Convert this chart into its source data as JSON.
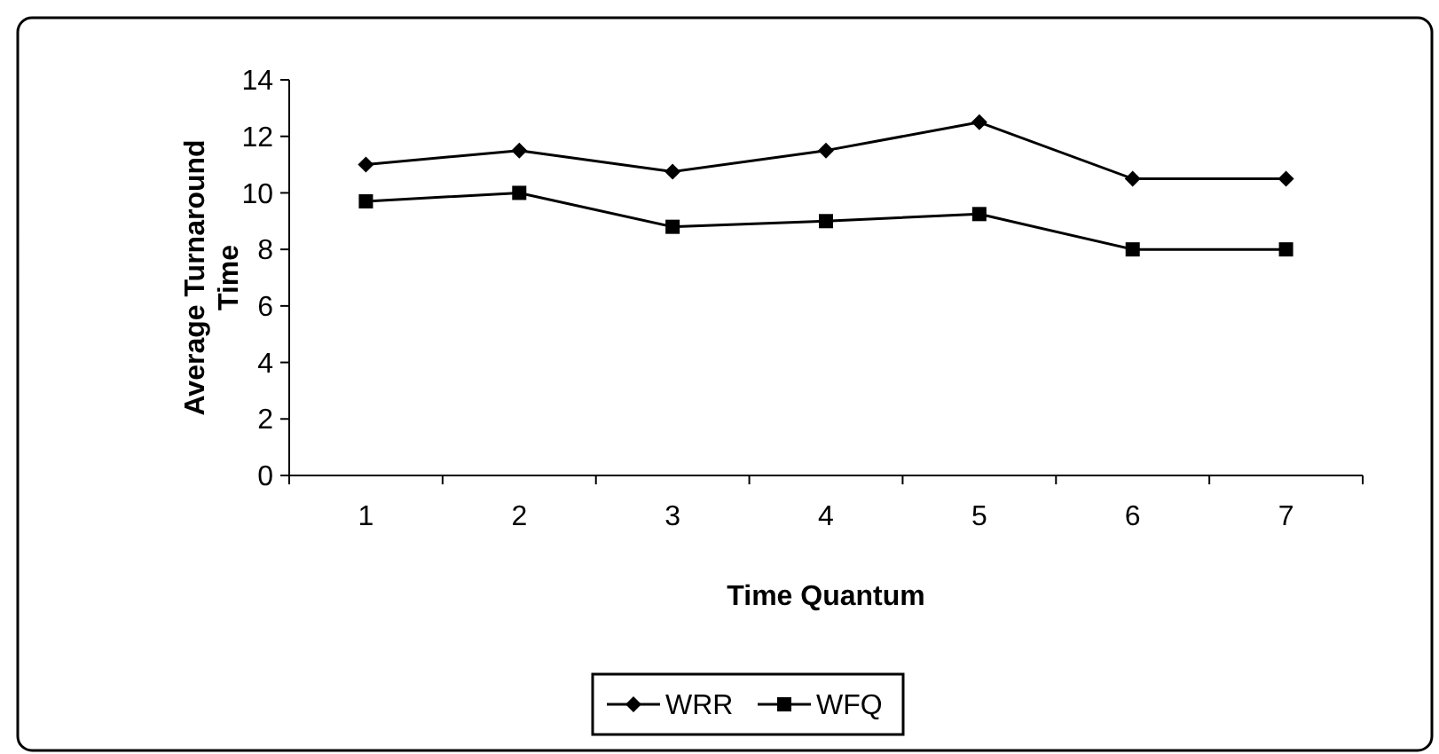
{
  "chart_data": {
    "type": "line",
    "xlabel": "Time Quantum",
    "ylabel": "Average Turnaround Time",
    "categories": [
      "1",
      "2",
      "3",
      "4",
      "5",
      "6",
      "7"
    ],
    "series": [
      {
        "name": "WRR",
        "color": "#000000",
        "marker": "diamond",
        "values": [
          11,
          11.5,
          10.75,
          11.5,
          12.5,
          10.5,
          10.5
        ]
      },
      {
        "name": "WFQ",
        "color": "#000000",
        "marker": "square",
        "values": [
          9.7,
          10,
          8.8,
          9,
          9.25,
          8,
          8
        ]
      }
    ],
    "ylim": [
      0,
      14
    ],
    "yticks": [
      0,
      2,
      4,
      6,
      8,
      10,
      12,
      14
    ],
    "grid": false,
    "legend": "bottom",
    "line_style": "solid"
  }
}
